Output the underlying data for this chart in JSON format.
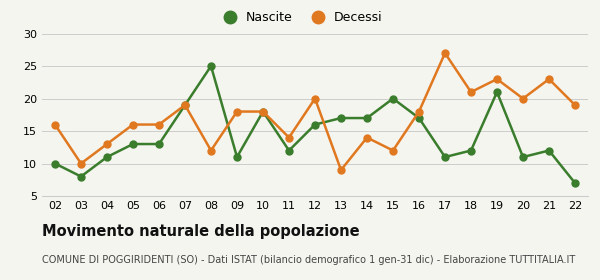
{
  "years": [
    "02",
    "03",
    "04",
    "05",
    "06",
    "07",
    "08",
    "09",
    "10",
    "11",
    "12",
    "13",
    "14",
    "15",
    "16",
    "17",
    "18",
    "19",
    "20",
    "21",
    "22"
  ],
  "nascite": [
    10,
    8,
    11,
    13,
    13,
    19,
    25,
    11,
    18,
    12,
    16,
    17,
    17,
    20,
    17,
    11,
    12,
    21,
    11,
    12,
    7
  ],
  "decessi": [
    16,
    10,
    13,
    16,
    16,
    19,
    12,
    18,
    18,
    14,
    20,
    9,
    14,
    12,
    18,
    27,
    21,
    23,
    20,
    23,
    19
  ],
  "nascite_color": "#3a7d2c",
  "decessi_color": "#e07820",
  "bg_color": "#f5f5f0",
  "grid_color": "#cccccc",
  "ylim": [
    5,
    30
  ],
  "yticks": [
    5,
    10,
    15,
    20,
    25,
    30
  ],
  "title": "Movimento naturale della popolazione",
  "subtitle": "COMUNE DI POGGIRIDENTI (SO) - Dati ISTAT (bilancio demografico 1 gen-31 dic) - Elaborazione TUTTITALIA.IT",
  "legend_nascite": "Nascite",
  "legend_decessi": "Decessi",
  "title_fontsize": 10.5,
  "subtitle_fontsize": 7,
  "tick_fontsize": 8,
  "legend_fontsize": 9,
  "marker_size": 5,
  "line_width": 1.8
}
